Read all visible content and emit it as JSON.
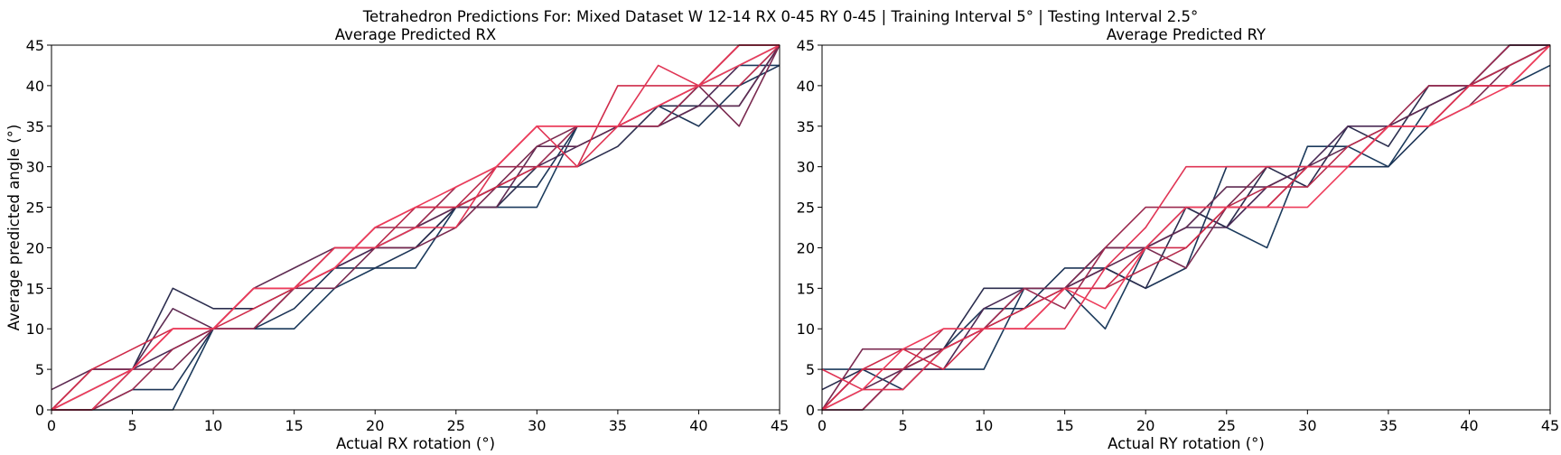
{
  "figure": {
    "suptitle": "Tetrahedron Predictions For: Mixed Dataset W 12-14 RX 0-45 RY 0-45 | Training Interval 5° | Testing Interval 2.5°"
  },
  "chart_data": [
    {
      "type": "line",
      "title": "Average Predicted RX",
      "xlabel": "Actual RX rotation (°)",
      "ylabel": "Average predicted angle (°)",
      "xlim": [
        0,
        45
      ],
      "ylim": [
        0,
        45
      ],
      "xticks": [
        "0",
        "5",
        "10",
        "15",
        "20",
        "25",
        "30",
        "35",
        "40",
        "45"
      ],
      "yticks": [
        "0",
        "5",
        "10",
        "15",
        "20",
        "25",
        "30",
        "35",
        "40",
        "45"
      ],
      "grid": false,
      "x": [
        0,
        2.5,
        5,
        7.5,
        10,
        12.5,
        15,
        17.5,
        20,
        22.5,
        25,
        27.5,
        30,
        32.5,
        35,
        37.5,
        40,
        42.5,
        45
      ],
      "series": [
        {
          "color": "#1b3a5c",
          "values": [
            0,
            0,
            0,
            0,
            10,
            10,
            10,
            15,
            17.5,
            17.5,
            25,
            25,
            25,
            35,
            35,
            35,
            40,
            42.5,
            42.5
          ]
        },
        {
          "color": "#1d3557",
          "values": [
            0,
            0,
            2.5,
            2.5,
            10,
            10,
            12.5,
            17.5,
            17.5,
            20,
            25,
            27.5,
            27.5,
            35,
            35,
            37.5,
            35,
            40,
            42.5
          ]
        },
        {
          "color": "#2b2d4e",
          "values": [
            0,
            0,
            5,
            15,
            12.5,
            12.5,
            15,
            17.5,
            20,
            20,
            25,
            25,
            30,
            30,
            32.5,
            37.5,
            37.5,
            37.5,
            45
          ]
        },
        {
          "color": "#4a2a55",
          "values": [
            0,
            2.5,
            5,
            7.5,
            10,
            10,
            15,
            17.5,
            20,
            22.5,
            25,
            27.5,
            30,
            32.5,
            35,
            35,
            37.5,
            42.5,
            45
          ]
        },
        {
          "color": "#5e2b52",
          "values": [
            2.5,
            5,
            5,
            12.5,
            10,
            15,
            17.5,
            20,
            20,
            22.5,
            25,
            25,
            32.5,
            32.5,
            35,
            35,
            37.5,
            37.5,
            45
          ]
        },
        {
          "color": "#7a2a50",
          "values": [
            0,
            5,
            5,
            5,
            10,
            15,
            15,
            15,
            20,
            20,
            22.5,
            27.5,
            32.5,
            35,
            35,
            37.5,
            40,
            35,
            45
          ]
        },
        {
          "color": "#9b2a4f",
          "values": [
            0,
            0,
            2.5,
            7.5,
            10,
            10,
            15,
            17.5,
            22.5,
            22.5,
            27.5,
            30,
            30,
            35,
            35,
            35,
            40,
            45,
            45
          ]
        },
        {
          "color": "#b82b4c",
          "values": [
            0,
            2.5,
            5,
            10,
            10,
            15,
            15,
            20,
            20,
            25,
            25,
            30,
            35,
            35,
            35,
            37.5,
            40,
            40,
            45
          ]
        },
        {
          "color": "#cf2b4a",
          "values": [
            0,
            5,
            7.5,
            10,
            10,
            12.5,
            15,
            17.5,
            22.5,
            25,
            25,
            27.5,
            30,
            30,
            40,
            40,
            40,
            45,
            45
          ]
        },
        {
          "color": "#e03454",
          "values": [
            0,
            0,
            5,
            10,
            10,
            15,
            15,
            20,
            20,
            22.5,
            22.5,
            30,
            35,
            30,
            35,
            42.5,
            40,
            45,
            45
          ]
        },
        {
          "color": "#ee3b5a",
          "values": [
            0,
            2.5,
            5,
            10,
            10,
            15,
            15,
            17.5,
            22.5,
            25,
            27.5,
            30,
            35,
            35,
            35,
            37.5,
            40,
            42.5,
            45
          ]
        }
      ]
    },
    {
      "type": "line",
      "title": "Average Predicted RY",
      "xlabel": "Actual RY rotation (°)",
      "ylabel": "",
      "xlim": [
        0,
        45
      ],
      "ylim": [
        0,
        45
      ],
      "xticks": [
        "0",
        "5",
        "10",
        "15",
        "20",
        "25",
        "30",
        "35",
        "40",
        "45"
      ],
      "yticks": [
        "0",
        "5",
        "10",
        "15",
        "20",
        "25",
        "30",
        "35",
        "40",
        "45"
      ],
      "grid": false,
      "x": [
        0,
        2.5,
        5,
        7.5,
        10,
        12.5,
        15,
        17.5,
        20,
        22.5,
        25,
        27.5,
        30,
        32.5,
        35,
        37.5,
        40,
        42.5,
        45
      ],
      "series": [
        {
          "color": "#1b3a5c",
          "values": [
            5,
            5,
            5,
            5,
            5,
            15,
            15,
            10,
            20,
            25,
            22.5,
            20,
            32.5,
            32.5,
            30,
            37.5,
            40,
            40,
            42.5
          ]
        },
        {
          "color": "#1d3557",
          "values": [
            0,
            5,
            2.5,
            7.5,
            12.5,
            12.5,
            17.5,
            17.5,
            15,
            17.5,
            30,
            30,
            30,
            30,
            30,
            35,
            40,
            45,
            45
          ]
        },
        {
          "color": "#2b2d4e",
          "values": [
            2.5,
            5,
            5,
            7.5,
            15,
            15,
            15,
            17.5,
            15,
            25,
            22.5,
            30,
            27.5,
            35,
            32.5,
            40,
            40,
            42.5,
            45
          ]
        },
        {
          "color": "#4a2a55",
          "values": [
            0,
            0,
            5,
            5,
            12.5,
            15,
            15,
            20,
            20,
            22.5,
            22.5,
            27.5,
            30,
            35,
            35,
            37.5,
            40,
            45,
            45
          ]
        },
        {
          "color": "#5e2b52",
          "values": [
            0,
            2.5,
            5,
            7.5,
            10,
            12.5,
            15,
            17.5,
            20,
            22.5,
            27.5,
            27.5,
            30,
            32.5,
            35,
            37.5,
            40,
            42.5,
            45
          ]
        },
        {
          "color": "#7a2a50",
          "values": [
            0,
            7.5,
            7.5,
            7.5,
            10,
            15,
            15,
            20,
            20,
            17.5,
            25,
            30,
            30,
            30,
            35,
            35,
            37.5,
            42.5,
            45
          ]
        },
        {
          "color": "#9b2a4f",
          "values": [
            0,
            0,
            5,
            7.5,
            10,
            15,
            12.5,
            20,
            25,
            25,
            25,
            25,
            30,
            30,
            35,
            40,
            40,
            45,
            45
          ]
        },
        {
          "color": "#b82b4c",
          "values": [
            0,
            5,
            5,
            10,
            10,
            10,
            15,
            15,
            17.5,
            20,
            25,
            27.5,
            27.5,
            32.5,
            35,
            35,
            40,
            42.5,
            45
          ]
        },
        {
          "color": "#cf2b4a",
          "values": [
            0,
            5,
            7.5,
            5,
            10,
            12.5,
            15,
            15,
            20,
            20,
            25,
            25,
            30,
            30,
            35,
            35,
            40,
            40,
            40
          ]
        },
        {
          "color": "#e03454",
          "values": [
            5,
            2.5,
            2.5,
            7.5,
            10,
            10,
            10,
            17.5,
            22.5,
            30,
            30,
            30,
            30,
            30,
            35,
            35,
            40,
            40,
            45
          ]
        },
        {
          "color": "#ee3b5a",
          "values": [
            0,
            2.5,
            7.5,
            10,
            10,
            10,
            15,
            12.5,
            20,
            25,
            25,
            25,
            25,
            30,
            35,
            35,
            37.5,
            40,
            45
          ]
        }
      ]
    }
  ]
}
